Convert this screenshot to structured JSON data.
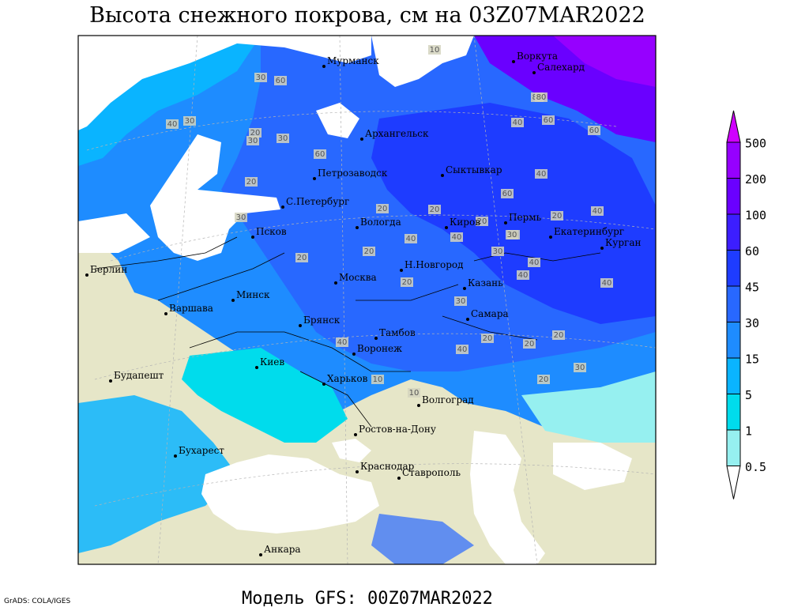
{
  "title": "Высота снежного покрова, см на 03Z07MAR2022",
  "footer": "Модель GFS: 00Z07MAR2022",
  "credit": "GrADS: COLA/IGES",
  "cities": [
    "Мурманск",
    "Воркута",
    "Салехард",
    "Архангельск",
    "Сыктывкар",
    "Петрозаводск",
    "С.Петербург",
    "Вологда",
    "Киров",
    "Пермь",
    "Екатеринбург",
    "Курган",
    "Псков",
    "Н.Новгород",
    "Москва",
    "Казань",
    "Берлин",
    "Минск",
    "Варшава",
    "Брянск",
    "Самара",
    "Тамбов",
    "Воронеж",
    "Киев",
    "Будапешт",
    "Харьков",
    "Волгоград",
    "Ростов-на-Дону",
    "Бухарест",
    "Краснодар",
    "Ставрополь",
    "Анкара"
  ],
  "legend": {
    "levels": [
      500,
      200,
      100,
      60,
      45,
      30,
      15,
      5,
      1,
      0.5
    ],
    "colors": [
      "#d000ff",
      "#9600ff",
      "#6a00ff",
      "#3c1eff",
      "#1e3cff",
      "#2868ff",
      "#1e8cff",
      "#0ab4ff",
      "#00dcec",
      "#96f0f0",
      "#ffffff"
    ]
  },
  "contour_labels": [
    10,
    30,
    60,
    30,
    80,
    40,
    30,
    20,
    30,
    60,
    20,
    40,
    40,
    60,
    20,
    20,
    40,
    20,
    40,
    30,
    20,
    30,
    30,
    40,
    40,
    20,
    30,
    20,
    40,
    40,
    10,
    10,
    20,
    40,
    60,
    80,
    60,
    40,
    20,
    20,
    30,
    20,
    30,
    20
  ]
}
